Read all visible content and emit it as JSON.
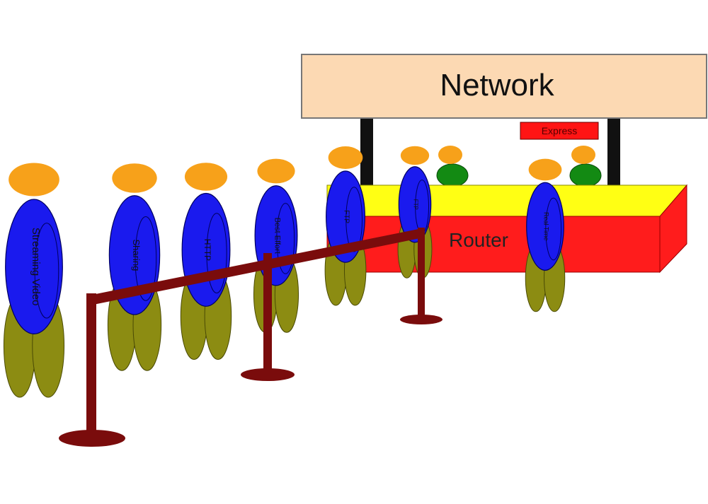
{
  "sign": {
    "title": "Network"
  },
  "counter": {
    "label": "Router",
    "express_label": "Express"
  },
  "queue": {
    "people": [
      {
        "label": "Streaming Video"
      },
      {
        "label": "Sharing"
      },
      {
        "label": "HTTP"
      },
      {
        "label": "Best Effort"
      },
      {
        "label": "FTP"
      },
      {
        "label": "FTP"
      }
    ]
  },
  "express_lane": {
    "person": {
      "label": "Real Time"
    }
  },
  "colors": {
    "head": "#f7a11a",
    "body": "#1a1aee",
    "legs": "#8c8c12",
    "rope": "#7a0c0c",
    "counter_front": "#ff1c1c",
    "counter_top": "#ffff14",
    "sign": "#fcd9b3",
    "clerk": "#138a13",
    "express": "#ff1414"
  }
}
